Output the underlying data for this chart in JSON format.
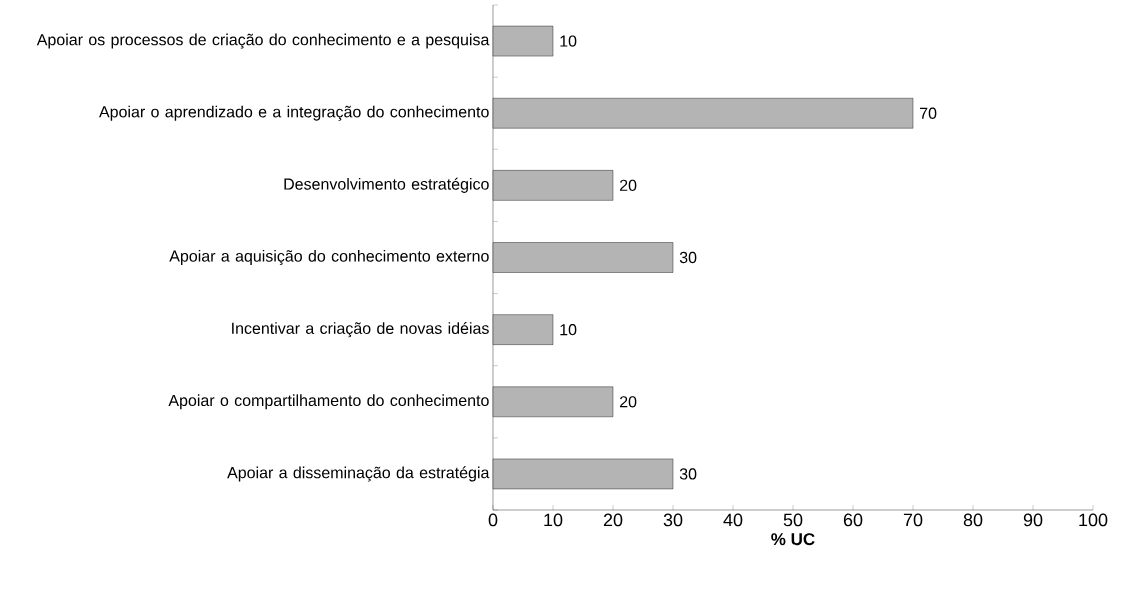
{
  "chart_data": {
    "type": "bar",
    "orientation": "horizontal",
    "xlabel": "% UC",
    "categories": [
      "Apoiar os processos de criação do conhecimento e a pesquisa",
      "Apoiar o aprendizado e a integração do conhecimento",
      "Desenvolvimento estratégico",
      "Apoiar a aquisição do conhecimento externo",
      "Incentivar a criação de novas idéias",
      "Apoiar o compartilhamento do conhecimento",
      "Apoiar a disseminação da estratégia"
    ],
    "values": [
      10,
      70,
      20,
      30,
      10,
      20,
      30
    ],
    "color": "#b4b4b4",
    "xlim": [
      0,
      100
    ],
    "xticks": [
      0,
      10,
      20,
      30,
      40,
      50,
      60,
      70,
      80,
      90,
      100
    ],
    "data_labels": true
  }
}
